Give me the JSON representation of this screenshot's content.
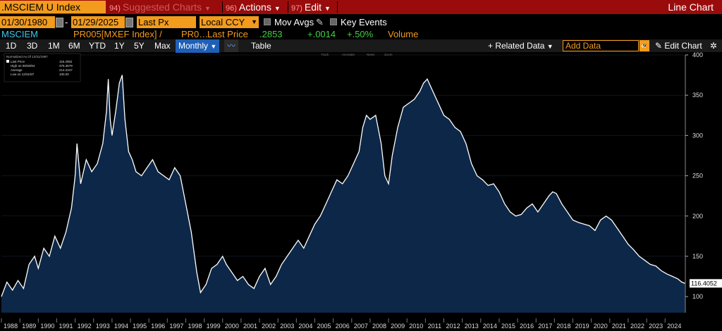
{
  "topbar": {
    "ticker": ".MSCIEM U Index",
    "suggested": {
      "num": "94)",
      "label": "Suggested Charts"
    },
    "actions": {
      "num": "96)",
      "label": "Actions"
    },
    "edit": {
      "num": "97)",
      "label": "Edit"
    },
    "chart_type": "Line Chart"
  },
  "controls": {
    "start_date": "01/30/1980",
    "end_date": "01/29/2025",
    "price_field": "Last Px",
    "currency": "Local CCY",
    "mov_avgs": "Mov Avgs",
    "key_events": "Key Events"
  },
  "security_row": {
    "name": "MSCIEM",
    "source": "PR005[MXEF Index] /",
    "pr": "PR0…",
    "last_price_label": "Last Price",
    "last_price": ".2853",
    "change": "+.0014",
    "change_pct": "+.50%",
    "volume_label": "Volume"
  },
  "toolbar": {
    "periods": [
      "1D",
      "3D",
      "1M",
      "6M",
      "YTD",
      "1Y",
      "5Y",
      "Max"
    ],
    "frequency": "Monthly",
    "table": "Table",
    "related_data": "+ Related Data",
    "add_data_placeholder": "Add Data",
    "edit_chart": "Edit Chart"
  },
  "legend": {
    "header": "Normalized As Of 12/31/1987",
    "rows": [
      {
        "label": "Last Price",
        "value": "116.4052"
      },
      {
        "label": "High on 09/30/94",
        "value": "376.3579"
      },
      {
        "label": "Average",
        "value": "214.2247"
      },
      {
        "label": "Low on 12/31/87",
        "value": "100.00"
      }
    ],
    "mini_tools": [
      "Track",
      "Annotate",
      "News",
      "Zoom"
    ]
  },
  "chart_data": {
    "type": "area",
    "title": "",
    "xlabel": "",
    "ylabel": "",
    "x_ticks": [
      "1988",
      "1989",
      "1990",
      "1991",
      "1992",
      "1993",
      "1994",
      "1995",
      "1996",
      "1997",
      "1998",
      "1999",
      "2000",
      "2001",
      "2002",
      "2003",
      "2004",
      "2005",
      "2006",
      "2007",
      "2008",
      "2009",
      "2010",
      "2011",
      "2012",
      "2013",
      "2014",
      "2015",
      "2016",
      "2017",
      "2018",
      "2019",
      "2020",
      "2021",
      "2022",
      "2023",
      "2024"
    ],
    "y_ticks": [
      100,
      150,
      200,
      250,
      300,
      350,
      400
    ],
    "ylim": [
      80,
      400
    ],
    "xlim": [
      1988.0,
      2025.1
    ],
    "last_value_label": "116.4052",
    "series": [
      {
        "values": [
          [
            1988.0,
            100
          ],
          [
            1988.3,
            118
          ],
          [
            1988.6,
            108
          ],
          [
            1988.9,
            120
          ],
          [
            1989.2,
            110
          ],
          [
            1989.5,
            140
          ],
          [
            1989.8,
            150
          ],
          [
            1990.0,
            135
          ],
          [
            1990.3,
            160
          ],
          [
            1990.6,
            150
          ],
          [
            1990.9,
            175
          ],
          [
            1991.2,
            160
          ],
          [
            1991.5,
            180
          ],
          [
            1991.8,
            210
          ],
          [
            1992.0,
            250
          ],
          [
            1992.1,
            290
          ],
          [
            1992.3,
            240
          ],
          [
            1992.6,
            270
          ],
          [
            1992.9,
            255
          ],
          [
            1993.2,
            265
          ],
          [
            1993.5,
            290
          ],
          [
            1993.7,
            330
          ],
          [
            1993.8,
            370
          ],
          [
            1993.9,
            320
          ],
          [
            1994.0,
            300
          ],
          [
            1994.2,
            330
          ],
          [
            1994.4,
            365
          ],
          [
            1994.55,
            375
          ],
          [
            1994.7,
            320
          ],
          [
            1994.9,
            280
          ],
          [
            1995.1,
            270
          ],
          [
            1995.3,
            255
          ],
          [
            1995.6,
            250
          ],
          [
            1995.9,
            260
          ],
          [
            1996.2,
            270
          ],
          [
            1996.5,
            255
          ],
          [
            1996.8,
            250
          ],
          [
            1997.1,
            245
          ],
          [
            1997.4,
            260
          ],
          [
            1997.7,
            250
          ],
          [
            1998.0,
            215
          ],
          [
            1998.3,
            180
          ],
          [
            1998.6,
            130
          ],
          [
            1998.8,
            105
          ],
          [
            1999.1,
            115
          ],
          [
            1999.4,
            135
          ],
          [
            1999.7,
            140
          ],
          [
            2000.0,
            150
          ],
          [
            2000.2,
            140
          ],
          [
            2000.5,
            130
          ],
          [
            2000.8,
            120
          ],
          [
            2001.1,
            125
          ],
          [
            2001.4,
            115
          ],
          [
            2001.7,
            110
          ],
          [
            2002.0,
            125
          ],
          [
            2002.3,
            135
          ],
          [
            2002.6,
            115
          ],
          [
            2002.9,
            125
          ],
          [
            2003.2,
            140
          ],
          [
            2003.5,
            150
          ],
          [
            2003.8,
            160
          ],
          [
            2004.1,
            170
          ],
          [
            2004.4,
            160
          ],
          [
            2004.7,
            175
          ],
          [
            2005.0,
            190
          ],
          [
            2005.3,
            200
          ],
          [
            2005.6,
            215
          ],
          [
            2005.9,
            230
          ],
          [
            2006.2,
            245
          ],
          [
            2006.5,
            240
          ],
          [
            2006.8,
            250
          ],
          [
            2007.1,
            265
          ],
          [
            2007.4,
            280
          ],
          [
            2007.6,
            310
          ],
          [
            2007.8,
            325
          ],
          [
            2008.0,
            320
          ],
          [
            2008.3,
            325
          ],
          [
            2008.6,
            290
          ],
          [
            2008.8,
            250
          ],
          [
            2009.0,
            240
          ],
          [
            2009.2,
            275
          ],
          [
            2009.5,
            310
          ],
          [
            2009.8,
            335
          ],
          [
            2010.1,
            340
          ],
          [
            2010.4,
            345
          ],
          [
            2010.7,
            355
          ],
          [
            2010.9,
            365
          ],
          [
            2011.1,
            370
          ],
          [
            2011.3,
            360
          ],
          [
            2011.6,
            345
          ],
          [
            2011.8,
            335
          ],
          [
            2012.0,
            325
          ],
          [
            2012.3,
            320
          ],
          [
            2012.6,
            310
          ],
          [
            2012.9,
            305
          ],
          [
            2013.2,
            290
          ],
          [
            2013.5,
            265
          ],
          [
            2013.8,
            250
          ],
          [
            2014.1,
            245
          ],
          [
            2014.4,
            238
          ],
          [
            2014.7,
            240
          ],
          [
            2015.0,
            230
          ],
          [
            2015.3,
            215
          ],
          [
            2015.6,
            205
          ],
          [
            2015.9,
            200
          ],
          [
            2016.2,
            202
          ],
          [
            2016.5,
            210
          ],
          [
            2016.8,
            215
          ],
          [
            2017.1,
            205
          ],
          [
            2017.4,
            215
          ],
          [
            2017.7,
            225
          ],
          [
            2017.9,
            230
          ],
          [
            2018.1,
            228
          ],
          [
            2018.4,
            215
          ],
          [
            2018.7,
            205
          ],
          [
            2019.0,
            195
          ],
          [
            2019.3,
            192
          ],
          [
            2019.6,
            190
          ],
          [
            2019.9,
            188
          ],
          [
            2020.2,
            182
          ],
          [
            2020.5,
            195
          ],
          [
            2020.8,
            200
          ],
          [
            2021.1,
            195
          ],
          [
            2021.4,
            185
          ],
          [
            2021.7,
            175
          ],
          [
            2022.0,
            165
          ],
          [
            2022.3,
            158
          ],
          [
            2022.6,
            150
          ],
          [
            2022.9,
            145
          ],
          [
            2023.2,
            140
          ],
          [
            2023.5,
            138
          ],
          [
            2023.8,
            132
          ],
          [
            2024.1,
            128
          ],
          [
            2024.4,
            125
          ],
          [
            2024.7,
            122
          ],
          [
            2024.9,
            118
          ],
          [
            2025.08,
            116.4
          ]
        ]
      }
    ]
  },
  "colors": {
    "accent_orange": "#f29b1d",
    "topbar_red": "#9a0b0b",
    "area_fill": "#0d2748",
    "line": "#ffffff"
  }
}
